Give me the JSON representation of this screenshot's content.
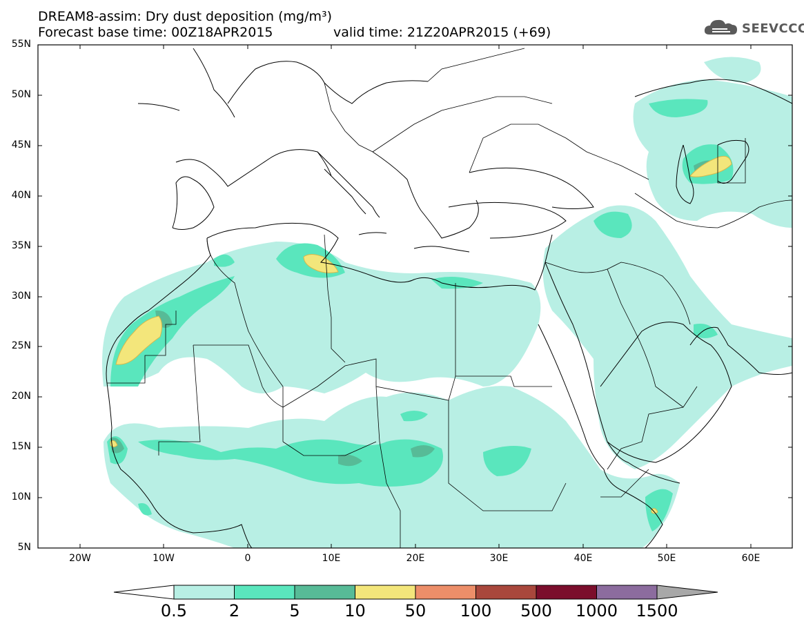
{
  "title": {
    "line1": "DREAM8-assim: Dry dust deposition (mg/m³)",
    "line2": "Forecast base time: 00Z18APR2015",
    "line3": "valid time: 21Z20APR2015 (+69)"
  },
  "logo": {
    "text": "SEEVCCC",
    "icon": "cloud-logo-icon"
  },
  "map": {
    "lat_labels": [
      "55N",
      "50N",
      "45N",
      "40N",
      "35N",
      "30N",
      "25N",
      "20N",
      "15N",
      "10N",
      "5N"
    ],
    "lon_labels": [
      "20W",
      "10W",
      "0",
      "10E",
      "20E",
      "30E",
      "40E",
      "50E",
      "60E"
    ],
    "lat_range": [
      5,
      55
    ],
    "lon_range": [
      -25,
      65
    ]
  },
  "colorbar": {
    "labels": [
      "0.5",
      "2",
      "5",
      "10",
      "50",
      "100",
      "500",
      "1000",
      "1500"
    ],
    "colors": [
      "#b8efe4",
      "#5ae6bd",
      "#57bb97",
      "#f3e67b",
      "#ec8e69",
      "#a9473c",
      "#7b0e2c",
      "#8c6c9e"
    ],
    "min_color": "#ffffff",
    "max_color": "#a8a8a8"
  }
}
